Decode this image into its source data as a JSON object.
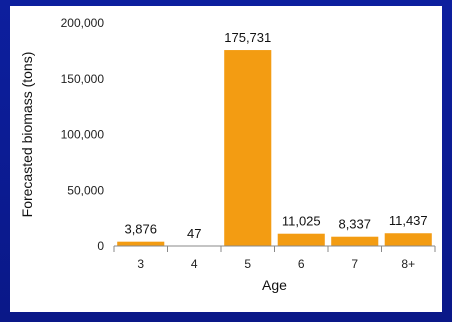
{
  "chart_data": {
    "type": "bar",
    "categories": [
      "3",
      "4",
      "5",
      "6",
      "7",
      "8+"
    ],
    "values": [
      3876,
      47,
      175731,
      11025,
      8337,
      11437
    ],
    "data_labels": [
      "3,876",
      "47",
      "175,731",
      "11,025",
      "8,337",
      "11,437"
    ],
    "xlabel": "Age",
    "ylabel": "Forecasted biomass (tons)",
    "ylim": [
      0,
      200000
    ],
    "yticks": [
      0,
      50000,
      100000,
      150000,
      200000
    ],
    "ytick_labels": [
      "0",
      "50,000",
      "100,000",
      "150,000",
      "200,000"
    ],
    "grid": false,
    "legend": "none",
    "bar_color": "#f39c12"
  },
  "colors": {
    "frame": "#0a1a9a",
    "panel": "#ffffff",
    "axis": "#888888"
  }
}
